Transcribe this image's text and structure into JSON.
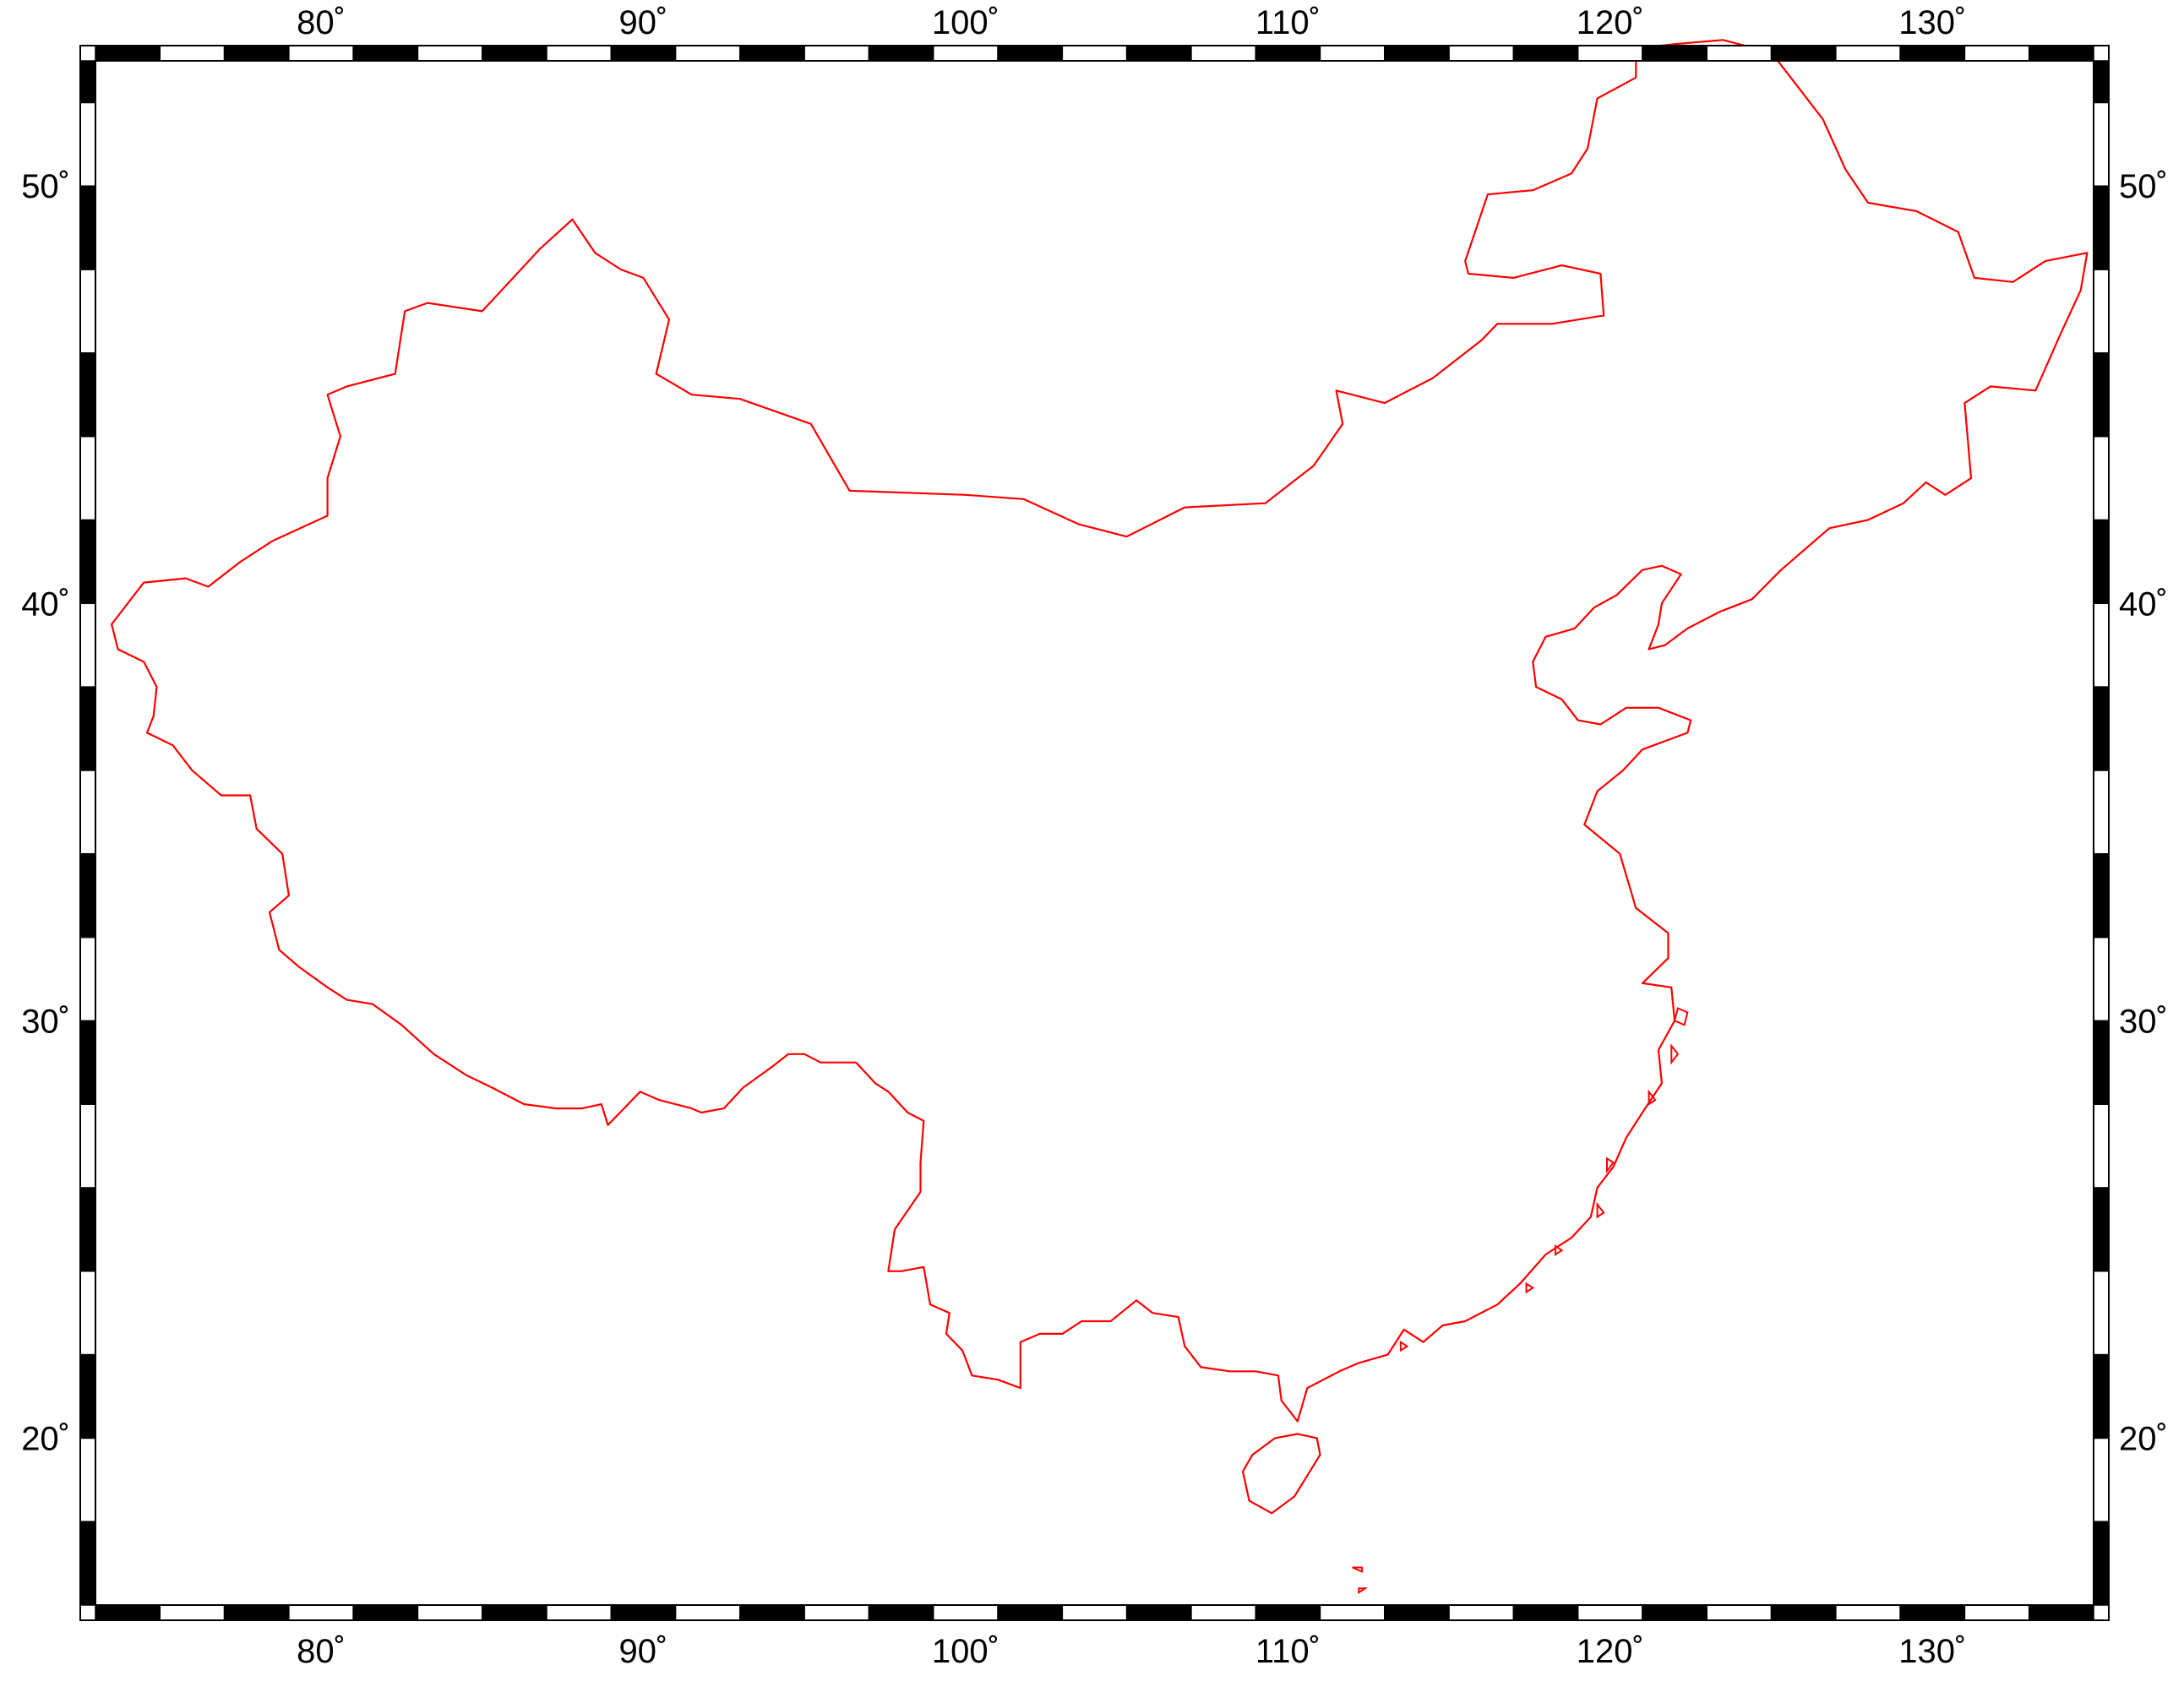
{
  "map": {
    "projection": "cylindrical-lonlat",
    "region": {
      "lon_min": 73,
      "lon_max": 135,
      "lat_min": 16,
      "lat_max": 53
    },
    "frame": {
      "style": "fancy-checker",
      "tick_interval_deg": 2
    },
    "colors": {
      "frame": "#000000",
      "background": "#ffffff",
      "outline": "#ff0000"
    },
    "lon_ticks": [
      {
        "value": 80,
        "label": "80˚"
      },
      {
        "value": 90,
        "label": "90˚"
      },
      {
        "value": 100,
        "label": "100˚"
      },
      {
        "value": 110,
        "label": "110˚"
      },
      {
        "value": 120,
        "label": "120˚"
      },
      {
        "value": 130,
        "label": "130˚"
      }
    ],
    "lat_ticks": [
      {
        "value": 20,
        "label": "20˚"
      },
      {
        "value": 30,
        "label": "30˚"
      },
      {
        "value": 40,
        "label": "40˚"
      },
      {
        "value": 50,
        "label": "50˚"
      }
    ]
  },
  "outline": {
    "name": "country-outline",
    "mainland": [
      [
        73.5,
        39.5
      ],
      [
        74.5,
        40.5
      ],
      [
        75.8,
        40.6
      ],
      [
        76.5,
        40.4
      ],
      [
        77.5,
        41.0
      ],
      [
        78.5,
        41.5
      ],
      [
        80.2,
        42.1
      ],
      [
        80.2,
        43.0
      ],
      [
        80.6,
        44.0
      ],
      [
        80.2,
        45.0
      ],
      [
        80.8,
        45.2
      ],
      [
        82.3,
        45.5
      ],
      [
        82.6,
        47.0
      ],
      [
        83.3,
        47.2
      ],
      [
        85.0,
        47.0
      ],
      [
        85.6,
        47.5
      ],
      [
        86.8,
        48.5
      ],
      [
        87.8,
        49.2
      ],
      [
        88.5,
        48.4
      ],
      [
        89.3,
        48.0
      ],
      [
        90.0,
        47.8
      ],
      [
        90.8,
        46.8
      ],
      [
        90.4,
        45.5
      ],
      [
        91.5,
        45.0
      ],
      [
        93.0,
        44.9
      ],
      [
        95.2,
        44.3
      ],
      [
        96.4,
        42.7
      ],
      [
        100.0,
        42.6
      ],
      [
        101.8,
        42.5
      ],
      [
        103.5,
        41.9
      ],
      [
        105.0,
        41.6
      ],
      [
        106.8,
        42.3
      ],
      [
        109.3,
        42.4
      ],
      [
        110.8,
        43.3
      ],
      [
        111.7,
        44.3
      ],
      [
        111.5,
        45.1
      ],
      [
        113.0,
        44.8
      ],
      [
        114.5,
        45.4
      ],
      [
        116.0,
        46.3
      ],
      [
        116.5,
        46.7
      ],
      [
        118.2,
        46.7
      ],
      [
        119.8,
        46.9
      ],
      [
        119.7,
        47.9
      ],
      [
        118.5,
        48.1
      ],
      [
        117.0,
        47.8
      ],
      [
        115.6,
        47.9
      ],
      [
        115.5,
        48.2
      ],
      [
        116.2,
        49.8
      ],
      [
        117.6,
        49.9
      ],
      [
        118.8,
        50.3
      ],
      [
        119.3,
        50.9
      ],
      [
        119.6,
        52.1
      ],
      [
        120.8,
        52.6
      ],
      [
        120.8,
        53.3
      ],
      [
        122.0,
        53.4
      ],
      [
        123.5,
        53.5
      ],
      [
        125.0,
        53.2
      ],
      [
        125.7,
        52.5
      ],
      [
        126.6,
        51.6
      ],
      [
        127.3,
        50.4
      ],
      [
        128.0,
        49.6
      ],
      [
        129.5,
        49.4
      ],
      [
        130.8,
        48.9
      ],
      [
        131.3,
        47.8
      ],
      [
        132.5,
        47.7
      ],
      [
        133.5,
        48.2
      ],
      [
        134.8,
        48.4
      ],
      [
        134.6,
        47.5
      ],
      [
        134.0,
        46.5
      ],
      [
        133.2,
        45.1
      ],
      [
        131.8,
        45.2
      ],
      [
        131.0,
        44.8
      ],
      [
        131.2,
        43.0
      ],
      [
        130.4,
        42.6
      ],
      [
        129.8,
        42.9
      ],
      [
        129.1,
        42.4
      ],
      [
        128.0,
        42.0
      ],
      [
        126.8,
        41.8
      ],
      [
        125.3,
        40.8
      ],
      [
        124.4,
        40.1
      ],
      [
        123.4,
        39.8
      ],
      [
        122.4,
        39.4
      ],
      [
        121.7,
        39.0
      ],
      [
        121.2,
        38.9
      ],
      [
        121.5,
        39.5
      ],
      [
        121.6,
        40.0
      ],
      [
        122.2,
        40.7
      ],
      [
        121.6,
        40.9
      ],
      [
        121.0,
        40.8
      ],
      [
        120.2,
        40.2
      ],
      [
        119.5,
        39.9
      ],
      [
        118.9,
        39.4
      ],
      [
        118.0,
        39.2
      ],
      [
        117.6,
        38.6
      ],
      [
        117.7,
        38.0
      ],
      [
        118.5,
        37.7
      ],
      [
        119.0,
        37.2
      ],
      [
        119.7,
        37.1
      ],
      [
        120.5,
        37.5
      ],
      [
        121.5,
        37.5
      ],
      [
        122.5,
        37.2
      ],
      [
        122.4,
        36.9
      ],
      [
        121.0,
        36.5
      ],
      [
        120.4,
        36.0
      ],
      [
        119.6,
        35.5
      ],
      [
        119.2,
        34.7
      ],
      [
        120.3,
        34.0
      ],
      [
        120.8,
        32.7
      ],
      [
        121.8,
        32.1
      ],
      [
        121.8,
        31.5
      ],
      [
        121.0,
        30.9
      ],
      [
        121.9,
        30.8
      ],
      [
        122.0,
        30.0
      ],
      [
        121.5,
        29.3
      ],
      [
        121.6,
        28.5
      ],
      [
        121.0,
        27.8
      ],
      [
        120.5,
        27.2
      ],
      [
        120.1,
        26.5
      ],
      [
        119.6,
        26.0
      ],
      [
        119.4,
        25.3
      ],
      [
        118.8,
        24.8
      ],
      [
        118.0,
        24.4
      ],
      [
        117.2,
        23.7
      ],
      [
        116.5,
        23.2
      ],
      [
        115.5,
        22.8
      ],
      [
        114.8,
        22.7
      ],
      [
        114.2,
        22.3
      ],
      [
        113.6,
        22.6
      ],
      [
        113.1,
        22.0
      ],
      [
        112.2,
        21.8
      ],
      [
        111.6,
        21.6
      ],
      [
        110.6,
        21.2
      ],
      [
        110.3,
        20.4
      ],
      [
        109.8,
        20.9
      ],
      [
        109.7,
        21.5
      ],
      [
        109.0,
        21.6
      ],
      [
        108.2,
        21.6
      ],
      [
        107.3,
        21.7
      ],
      [
        106.8,
        22.2
      ],
      [
        106.6,
        22.9
      ],
      [
        105.8,
        23.0
      ],
      [
        105.3,
        23.3
      ],
      [
        104.5,
        22.8
      ],
      [
        103.6,
        22.8
      ],
      [
        103.0,
        22.5
      ],
      [
        102.3,
        22.5
      ],
      [
        101.7,
        22.3
      ],
      [
        101.7,
        21.2
      ],
      [
        101.0,
        21.4
      ],
      [
        100.2,
        21.5
      ],
      [
        99.9,
        22.1
      ],
      [
        99.4,
        22.5
      ],
      [
        99.5,
        23.0
      ],
      [
        98.9,
        23.2
      ],
      [
        98.7,
        24.1
      ],
      [
        98.0,
        24.0
      ],
      [
        97.6,
        24.0
      ],
      [
        97.8,
        25.0
      ],
      [
        98.6,
        25.9
      ],
      [
        98.6,
        26.6
      ],
      [
        98.7,
        27.6
      ],
      [
        98.2,
        27.8
      ],
      [
        97.6,
        28.3
      ],
      [
        97.2,
        28.5
      ],
      [
        96.6,
        29.0
      ],
      [
        96.2,
        29.0
      ],
      [
        95.5,
        29.0
      ],
      [
        95.0,
        29.2
      ],
      [
        94.5,
        29.2
      ],
      [
        94.0,
        28.9
      ],
      [
        93.1,
        28.4
      ],
      [
        92.5,
        27.9
      ],
      [
        91.8,
        27.8
      ],
      [
        91.5,
        27.9
      ],
      [
        90.5,
        28.1
      ],
      [
        89.9,
        28.3
      ],
      [
        89.4,
        27.9
      ],
      [
        88.9,
        27.5
      ],
      [
        88.7,
        28.0
      ],
      [
        88.1,
        27.9
      ],
      [
        87.3,
        27.9
      ],
      [
        86.3,
        28.0
      ],
      [
        85.3,
        28.4
      ],
      [
        84.5,
        28.7
      ],
      [
        83.5,
        29.2
      ],
      [
        82.5,
        29.9
      ],
      [
        81.6,
        30.4
      ],
      [
        80.8,
        30.5
      ],
      [
        80.2,
        30.8
      ],
      [
        79.3,
        31.3
      ],
      [
        78.7,
        31.7
      ],
      [
        78.4,
        32.6
      ],
      [
        79.0,
        33.0
      ],
      [
        78.8,
        34.0
      ],
      [
        78.0,
        34.6
      ],
      [
        77.8,
        35.4
      ],
      [
        76.9,
        35.4
      ],
      [
        76.0,
        36.0
      ],
      [
        75.4,
        36.6
      ],
      [
        74.6,
        36.9
      ],
      [
        74.8,
        37.3
      ],
      [
        74.9,
        38.0
      ],
      [
        74.5,
        38.6
      ],
      [
        73.7,
        38.9
      ],
      [
        73.5,
        39.5
      ]
    ],
    "bohai_inner": [],
    "hainan": [
      [
        110.3,
        20.1
      ],
      [
        110.9,
        20.0
      ],
      [
        111.0,
        19.6
      ],
      [
        110.6,
        19.1
      ],
      [
        110.2,
        18.6
      ],
      [
        109.5,
        18.2
      ],
      [
        108.8,
        18.5
      ],
      [
        108.6,
        19.2
      ],
      [
        108.9,
        19.6
      ],
      [
        109.6,
        20.0
      ],
      [
        110.3,
        20.1
      ]
    ],
    "islands": [
      [
        [
          122.1,
          30.3
        ],
        [
          122.4,
          30.2
        ],
        [
          122.3,
          29.9
        ],
        [
          122.0,
          30.0
        ],
        [
          122.1,
          30.3
        ]
      ],
      [
        [
          121.9,
          29.4
        ],
        [
          122.1,
          29.2
        ],
        [
          121.9,
          29.0
        ],
        [
          121.9,
          29.4
        ]
      ],
      [
        [
          121.2,
          28.3
        ],
        [
          121.4,
          28.1
        ],
        [
          121.2,
          28.0
        ],
        [
          121.2,
          28.3
        ]
      ],
      [
        [
          119.9,
          26.7
        ],
        [
          120.1,
          26.6
        ],
        [
          119.9,
          26.4
        ],
        [
          119.9,
          26.7
        ]
      ],
      [
        [
          119.6,
          25.6
        ],
        [
          119.8,
          25.4
        ],
        [
          119.6,
          25.3
        ],
        [
          119.6,
          25.6
        ]
      ],
      [
        [
          118.3,
          24.6
        ],
        [
          118.5,
          24.5
        ],
        [
          118.3,
          24.4
        ],
        [
          118.3,
          24.6
        ]
      ],
      [
        [
          117.4,
          23.7
        ],
        [
          117.6,
          23.6
        ],
        [
          117.4,
          23.5
        ],
        [
          117.4,
          23.7
        ]
      ],
      [
        [
          113.5,
          22.3
        ],
        [
          113.7,
          22.2
        ],
        [
          113.5,
          22.1
        ],
        [
          113.5,
          22.3
        ]
      ],
      [
        [
          112.0,
          16.9
        ],
        [
          112.3,
          16.9
        ],
        [
          112.3,
          16.8
        ],
        [
          112.0,
          16.9
        ]
      ],
      [
        [
          112.2,
          16.4
        ],
        [
          112.4,
          16.4
        ],
        [
          112.2,
          16.3
        ],
        [
          112.2,
          16.4
        ]
      ]
    ]
  }
}
